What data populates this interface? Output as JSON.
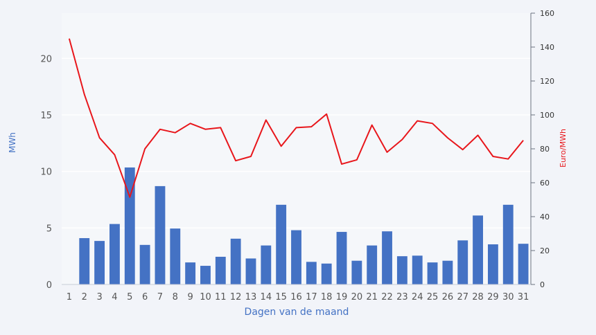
{
  "chart_data": {
    "type": "bar",
    "combo": "bar + line, dual y-axis",
    "title": "",
    "xlabel": "Dagen van de maand",
    "ylabel_left": "MWh",
    "ylabel_right": "Euro/MWh",
    "ylim_left": [
      0,
      24
    ],
    "ylim_right": [
      0,
      160
    ],
    "yticks_left": [
      "0",
      "5",
      "10",
      "15",
      "20"
    ],
    "yticks_right": [
      "0",
      "20",
      "40",
      "60",
      "80",
      "100",
      "120",
      "140",
      "160"
    ],
    "categories": [
      "1",
      "2",
      "3",
      "4",
      "5",
      "6",
      "7",
      "8",
      "9",
      "10",
      "11",
      "12",
      "13",
      "14",
      "15",
      "16",
      "17",
      "18",
      "19",
      "20",
      "21",
      "22",
      "23",
      "24",
      "25",
      "26",
      "27",
      "28",
      "29",
      "30",
      "31"
    ],
    "grid": true,
    "legend": "none",
    "series": [
      {
        "type": "bar",
        "axis": "left",
        "color": "#4472c4",
        "values": [
          0,
          4.1,
          3.85,
          5.35,
          10.35,
          3.5,
          8.7,
          4.95,
          1.95,
          1.65,
          2.45,
          4.05,
          2.3,
          3.45,
          7.05,
          4.8,
          2.0,
          1.85,
          4.65,
          2.1,
          3.45,
          4.7,
          2.5,
          2.55,
          1.95,
          2.1,
          3.9,
          6.1,
          3.55,
          7.05,
          3.6
        ]
      },
      {
        "type": "line",
        "axis": "right",
        "color": "#e8161b",
        "values": [
          145,
          112,
          86.5,
          76.5,
          51.5,
          80,
          91.5,
          89.5,
          95,
          91.5,
          92.5,
          73,
          75.5,
          97,
          81.5,
          92.5,
          93,
          100.5,
          71,
          73.5,
          94,
          78,
          85.5,
          96.5,
          95,
          86.5,
          79.5,
          88,
          75.5,
          74,
          85
        ]
      }
    ]
  }
}
